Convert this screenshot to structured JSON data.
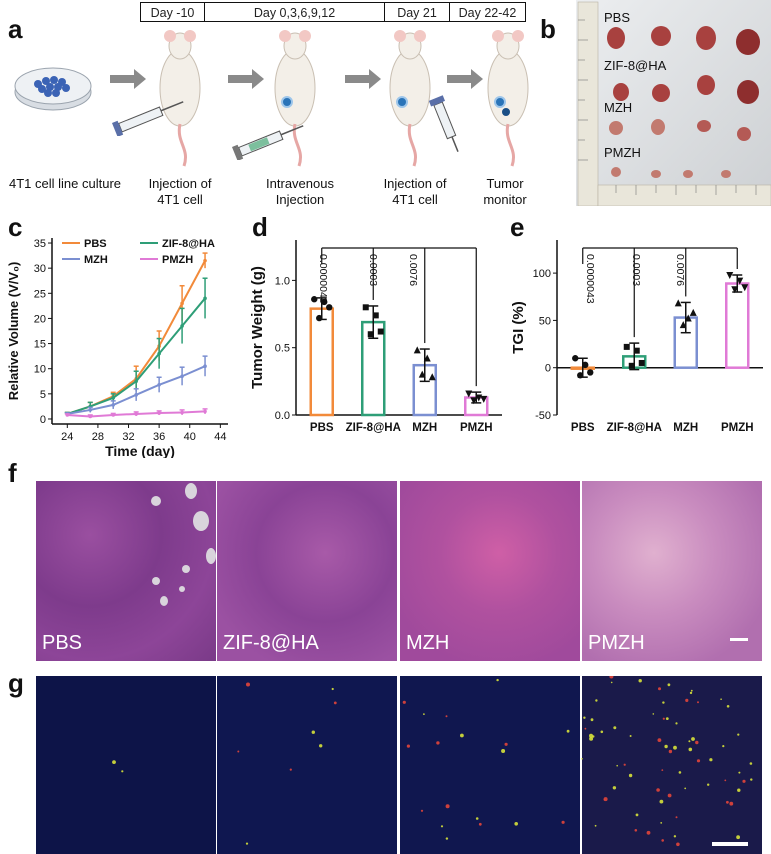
{
  "panels": {
    "a": "a",
    "b": "b",
    "c": "c",
    "d": "d",
    "e": "e",
    "f": "f",
    "g": "g"
  },
  "timeline": [
    "Day -10",
    "Day 0,3,6,9,12",
    "Day 21",
    "Day 22-42"
  ],
  "steps": [
    {
      "line1": "4T1 cell line culture",
      "line2": ""
    },
    {
      "line1": "Injection of",
      "line2": "4T1 cell"
    },
    {
      "line1": "Intravenous",
      "line2": "Injection"
    },
    {
      "line1": "Injection of",
      "line2": "4T1 cell"
    },
    {
      "line1": "Tumor",
      "line2": "monitor"
    }
  ],
  "photo_labels": [
    "PBS",
    "ZIF-8@HA",
    "MZH",
    "PMZH"
  ],
  "groups": [
    "PBS",
    "ZIF-8@HA",
    "MZH",
    "PMZH"
  ],
  "colors": {
    "PBS": "#f28a3a",
    "ZIF-8@HA": "#2e9e77",
    "MZH": "#7b8fd1",
    "PMZH": "#e07ad6"
  },
  "chart_data": [
    {
      "type": "line",
      "xlabel": "Time (day)",
      "ylabel": "Relative Volume (V/V₀)",
      "xlim": [
        22,
        45
      ],
      "ylim": [
        -1,
        36
      ],
      "xticks": [
        24,
        28,
        32,
        36,
        40,
        44
      ],
      "yticks": [
        0,
        5,
        10,
        15,
        20,
        25,
        30,
        35
      ],
      "x": [
        24,
        27,
        30,
        33,
        36,
        39,
        42
      ],
      "series": [
        {
          "name": "PBS",
          "values": [
            1,
            2.5,
            4.5,
            8,
            14.5,
            23,
            31.5
          ],
          "err": [
            0.3,
            0.8,
            0.8,
            2.5,
            3,
            3.5,
            1.5
          ]
        },
        {
          "name": "ZIF-8@HA",
          "values": [
            1,
            2.5,
            4.2,
            7.5,
            13,
            18.5,
            24
          ],
          "err": [
            0.3,
            0.8,
            0.8,
            2,
            3,
            3.5,
            4
          ]
        },
        {
          "name": "MZH",
          "values": [
            1,
            1.8,
            2.8,
            4.8,
            6.8,
            8.5,
            10.5
          ],
          "err": [
            0.2,
            0.5,
            0.8,
            1.2,
            1.5,
            1.8,
            2
          ]
        },
        {
          "name": "PMZH",
          "values": [
            0.8,
            0.5,
            0.8,
            1,
            1.2,
            1.3,
            1.5
          ],
          "err": [
            0.2,
            0.3,
            0.3,
            0.4,
            0.4,
            0.5,
            0.5
          ]
        }
      ],
      "legend": "top-left"
    },
    {
      "type": "bar",
      "ylabel": "Tumor Weight (g)",
      "categories": [
        "PBS",
        "ZIF-8@HA",
        "MZH",
        "PMZH"
      ],
      "values": [
        0.79,
        0.69,
        0.37,
        0.13
      ],
      "err": [
        0.08,
        0.12,
        0.12,
        0.04
      ],
      "points": [
        [
          0.86,
          0.72,
          0.84,
          0.8
        ],
        [
          0.8,
          0.6,
          0.74,
          0.62
        ],
        [
          0.48,
          0.3,
          0.42,
          0.28
        ],
        [
          0.16,
          0.11,
          0.13,
          0.12
        ]
      ],
      "ylim": [
        0,
        1.3
      ],
      "yticks": [
        0.0,
        0.5,
        1.0
      ],
      "pvalues": [
        "0.0000043",
        "0.0003",
        "0.0076"
      ]
    },
    {
      "type": "bar",
      "ylabel": "TGI (%)",
      "categories": [
        "PBS",
        "ZIF-8@HA",
        "MZH",
        "PMZH"
      ],
      "values": [
        0,
        12,
        53,
        89
      ],
      "err": [
        10,
        14,
        16,
        9
      ],
      "points": [
        [
          10,
          -8,
          3,
          -5
        ],
        [
          22,
          2,
          18,
          5
        ],
        [
          68,
          45,
          52,
          58
        ],
        [
          98,
          83,
          92,
          85
        ]
      ],
      "ylim": [
        -50,
        135
      ],
      "yticks": [
        -50,
        0,
        50,
        100
      ],
      "pvalues": [
        "0.0000043",
        "0.0003",
        "0.0076"
      ]
    }
  ],
  "he_labels": [
    "PBS",
    "ZIF-8@HA",
    "MZH",
    "PMZH"
  ]
}
